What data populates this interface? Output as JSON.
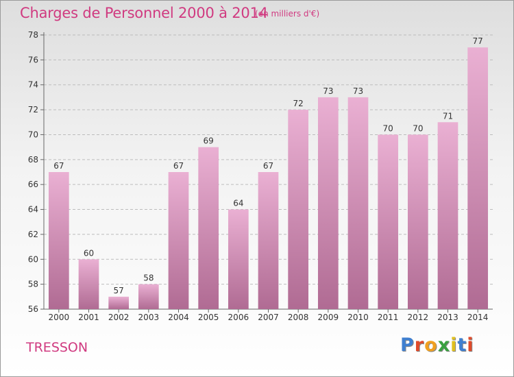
{
  "header": {
    "title": "Charges de Personnel 2000 à 2014",
    "unit": "(en milliers d'€)"
  },
  "footer": {
    "place": "TRESSON",
    "logo_letters": [
      "P",
      "r",
      "o",
      "x",
      "i",
      "t",
      "i"
    ],
    "logo_colors": [
      "#3f7fd0",
      "#e04a2a",
      "#f0a020",
      "#3aa040",
      "#e0c020",
      "#3f7fd0",
      "#e04a2a"
    ]
  },
  "colors": {
    "accent": "#d03a80",
    "bar_top": "#eab0d3",
    "bar_bottom": "#b06b93"
  },
  "chart_data": {
    "type": "bar",
    "title": "Charges de Personnel 2000 à 2014",
    "subtitle": "(en milliers d'€)",
    "xlabel": "",
    "ylabel": "",
    "categories": [
      "2000",
      "2001",
      "2002",
      "2003",
      "2004",
      "2005",
      "2006",
      "2007",
      "2008",
      "2009",
      "2010",
      "2011",
      "2012",
      "2013",
      "2014"
    ],
    "values": [
      67,
      60,
      57,
      58,
      67,
      69,
      64,
      67,
      72,
      73,
      73,
      70,
      70,
      71,
      77
    ],
    "ylim": [
      56,
      78
    ],
    "yticks": [
      56,
      58,
      60,
      62,
      64,
      66,
      68,
      70,
      72,
      74,
      76,
      78
    ],
    "grid": true
  }
}
